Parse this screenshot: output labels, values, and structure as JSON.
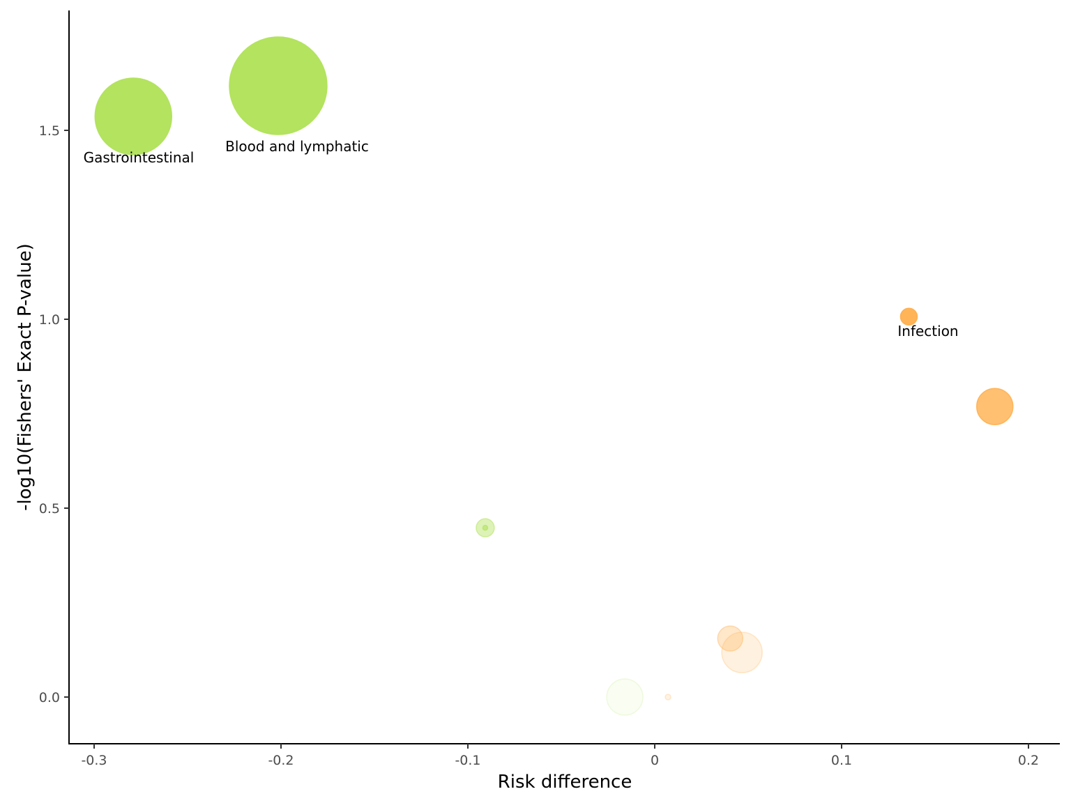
{
  "chart_data": {
    "type": "scatter",
    "title": "",
    "xlabel": "Risk difference",
    "ylabel": "-log10(Fishers' Exact P-value)",
    "xlim": [
      -0.314,
      0.216
    ],
    "ylim": [
      -0.125,
      1.82
    ],
    "xticks": [
      -0.3,
      -0.2,
      -0.1,
      0,
      0.1,
      0.2
    ],
    "xtick_labels": [
      "-0.3",
      "-0.2",
      "-0.1",
      "0",
      "0.1",
      "0.2"
    ],
    "yticks": [
      0.0,
      0.5,
      1.0,
      1.5
    ],
    "ytick_labels": [
      "0.0",
      "0.5",
      "1.0",
      "1.5"
    ],
    "grid": false,
    "legend": "none",
    "colors": {
      "negative": "#b3e35f",
      "positive": "#ffb04f"
    },
    "points": [
      {
        "x": -0.279,
        "y": 1.537,
        "size": 55,
        "alpha": 1.0,
        "color": "#b3e35f",
        "label": "Gastrointestinal"
      },
      {
        "x": -0.2015,
        "y": 1.618,
        "size": 70,
        "alpha": 1.0,
        "color": "#b3e35f",
        "label": "Blood and lymphatic"
      },
      {
        "x": 0.136,
        "y": 1.007,
        "size": 12,
        "alpha": 0.95,
        "color": "#ffb04f",
        "label": "Infection"
      },
      {
        "x": 0.182,
        "y": 0.769,
        "size": 26,
        "alpha": 0.8,
        "color": "#ffb04f",
        "label": ""
      },
      {
        "x": -0.0907,
        "y": 0.448,
        "size": 13,
        "alpha": 0.45,
        "color": "#b3e35f",
        "label": ""
      },
      {
        "x": -0.0907,
        "y": 0.448,
        "size": 3.5,
        "alpha": 0.6,
        "color": "#b3e35f",
        "label": ""
      },
      {
        "x": 0.0404,
        "y": 0.155,
        "size": 18,
        "alpha": 0.3,
        "color": "#ffb04f",
        "label": ""
      },
      {
        "x": 0.0467,
        "y": 0.118,
        "size": 29,
        "alpha": 0.18,
        "color": "#ffb04f",
        "label": ""
      },
      {
        "x": -0.016,
        "y": 0.0,
        "size": 26,
        "alpha": 0.08,
        "color": "#b3e35f",
        "label": ""
      },
      {
        "x": 0.0071,
        "y": 0.0,
        "size": 4,
        "alpha": 0.15,
        "color": "#ffb04f",
        "label": ""
      }
    ]
  }
}
